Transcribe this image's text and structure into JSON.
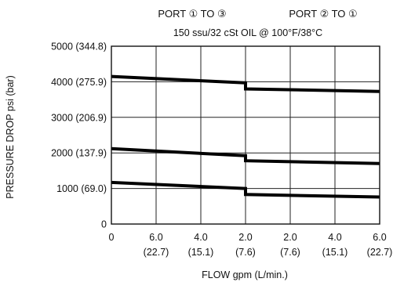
{
  "chart_data": {
    "type": "line",
    "port_labels": [
      "PORT ① TO ③",
      "PORT ② TO ①"
    ],
    "subtitle": "150 ssu/32 cSt OIL @ 100°F/38°C",
    "xlabel": "FLOW gpm (L/min.)",
    "ylabel": "PRESSURE DROP psi (bar)",
    "xlim": [
      -6,
      6
    ],
    "ylim": [
      0,
      5000
    ],
    "x_ticks": [
      {
        "x": -6,
        "top": "0",
        "bottom": ""
      },
      {
        "x": -4,
        "top": "6.0",
        "bottom": "(22.7)"
      },
      {
        "x": -2,
        "top": "4.0",
        "bottom": "(15.1)"
      },
      {
        "x": 0,
        "top": "2.0",
        "bottom": "(7.6)"
      },
      {
        "x": 2,
        "top": "2.0",
        "bottom": "(7.6)"
      },
      {
        "x": 4,
        "top": "4.0",
        "bottom": "(15.1)"
      },
      {
        "x": 6,
        "top": "6.0",
        "bottom": "(22.7)"
      }
    ],
    "y_ticks": [
      {
        "y": 0,
        "label": "0"
      },
      {
        "y": 1000,
        "label": "1000 (69.0)"
      },
      {
        "y": 2000,
        "label": "2000 (137.9)"
      },
      {
        "y": 3000,
        "label": "3000 (206.9)"
      },
      {
        "y": 4000,
        "label": "4000 (275.9)"
      },
      {
        "y": 5000,
        "label": "5000 (344.8)"
      }
    ],
    "grid": true,
    "series": [
      {
        "segments": [
          {
            "x": [
              -6,
              0
            ],
            "y": [
              4150,
              3970
            ]
          },
          {
            "x": [
              0,
              6
            ],
            "y": [
              3800,
              3730
            ]
          }
        ]
      },
      {
        "segments": [
          {
            "x": [
              -6,
              0
            ],
            "y": [
              2120,
              1920
            ]
          },
          {
            "x": [
              0,
              6
            ],
            "y": [
              1780,
              1700
            ]
          }
        ]
      },
      {
        "segments": [
          {
            "x": [
              -6,
              0
            ],
            "y": [
              1170,
              1000
            ]
          },
          {
            "x": [
              0,
              6
            ],
            "y": [
              830,
              760
            ]
          }
        ]
      }
    ]
  }
}
